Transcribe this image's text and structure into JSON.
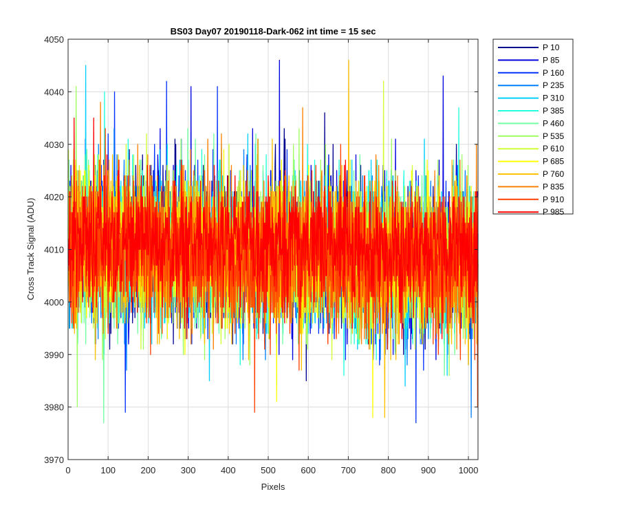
{
  "chart_data": {
    "type": "line",
    "title": "BS03 Day07 20190118-Dark-062 int time = 15 sec",
    "xlabel": "Pixels",
    "ylabel": "Cross Track Signal (ADU)",
    "xlim": [
      0,
      1024
    ],
    "ylim": [
      3970,
      4050
    ],
    "xticks": [
      0,
      100,
      200,
      300,
      400,
      500,
      600,
      700,
      800,
      900,
      1000
    ],
    "yticks": [
      3970,
      3980,
      3990,
      4000,
      4010,
      4020,
      4030,
      4040,
      4050
    ],
    "grid": true,
    "legend_position": "outside-top-right",
    "num_points": 1024,
    "series": [
      {
        "name": "P 10",
        "color": "#00008f",
        "mean": 4009,
        "noise": 7,
        "seed": 11,
        "spikes": [
          [
            640,
            4036
          ]
        ]
      },
      {
        "name": "P 85",
        "color": "#0000df",
        "mean": 4009,
        "noise": 7,
        "seed": 23,
        "spikes": [
          [
            527,
            4046
          ],
          [
            306,
            4041
          ],
          [
            936,
            4043
          ]
        ]
      },
      {
        "name": "P 160",
        "color": "#0030ff",
        "mean": 4009,
        "noise": 7,
        "seed": 37,
        "spikes": [
          [
            115,
            4040
          ],
          [
            245,
            4042
          ],
          [
            372,
            4041
          ],
          [
            142,
            3979
          ],
          [
            868,
            3977
          ]
        ]
      },
      {
        "name": "P 235",
        "color": "#0080ff",
        "mean": 4009,
        "noise": 7,
        "seed": 41,
        "spikes": [
          [
            1006,
            3978
          ]
        ]
      },
      {
        "name": "P 310",
        "color": "#00cfff",
        "mean": 4009,
        "noise": 7,
        "seed": 53,
        "spikes": [
          [
            43,
            4045
          ]
        ]
      },
      {
        "name": "P 385",
        "color": "#20ffdf",
        "mean": 4009,
        "noise": 7,
        "seed": 59,
        "spikes": [
          [
            90,
            4040
          ],
          [
            975,
            4037
          ]
        ]
      },
      {
        "name": "P 460",
        "color": "#70ffa0",
        "mean": 4009,
        "noise": 7,
        "seed": 67,
        "spikes": [
          [
            88,
            3977
          ]
        ]
      },
      {
        "name": "P 535",
        "color": "#a0ff60",
        "mean": 4009,
        "noise": 7,
        "seed": 71,
        "spikes": [
          [
            19,
            4041
          ],
          [
            22,
            3980
          ]
        ]
      },
      {
        "name": "P 610",
        "color": "#cfff30",
        "mean": 4009,
        "noise": 7,
        "seed": 79,
        "spikes": [
          [
            787,
            4042
          ]
        ]
      },
      {
        "name": "P 685",
        "color": "#ffff00",
        "mean": 4009,
        "noise": 7,
        "seed": 83,
        "spikes": [
          [
            520,
            3981
          ],
          [
            760,
            3978
          ]
        ]
      },
      {
        "name": "P 760",
        "color": "#ffc000",
        "mean": 4009,
        "noise": 7,
        "seed": 89,
        "spikes": [
          [
            700,
            4046
          ],
          [
            790,
            3978
          ]
        ]
      },
      {
        "name": "P 835",
        "color": "#ff8000",
        "mean": 4009,
        "noise": 7,
        "seed": 97,
        "spikes": [
          [
            80,
            4038
          ],
          [
            585,
            4037
          ]
        ]
      },
      {
        "name": "P 910",
        "color": "#ff4000",
        "mean": 4009,
        "noise": 7,
        "seed": 101,
        "spikes": [
          [
            465,
            3979
          ],
          [
            1022,
            3980
          ]
        ]
      },
      {
        "name": "P 985",
        "color": "#ff0000",
        "mean": 4011,
        "noise": 6,
        "seed": 107,
        "spikes": [
          [
            14,
            4035
          ]
        ]
      }
    ]
  }
}
